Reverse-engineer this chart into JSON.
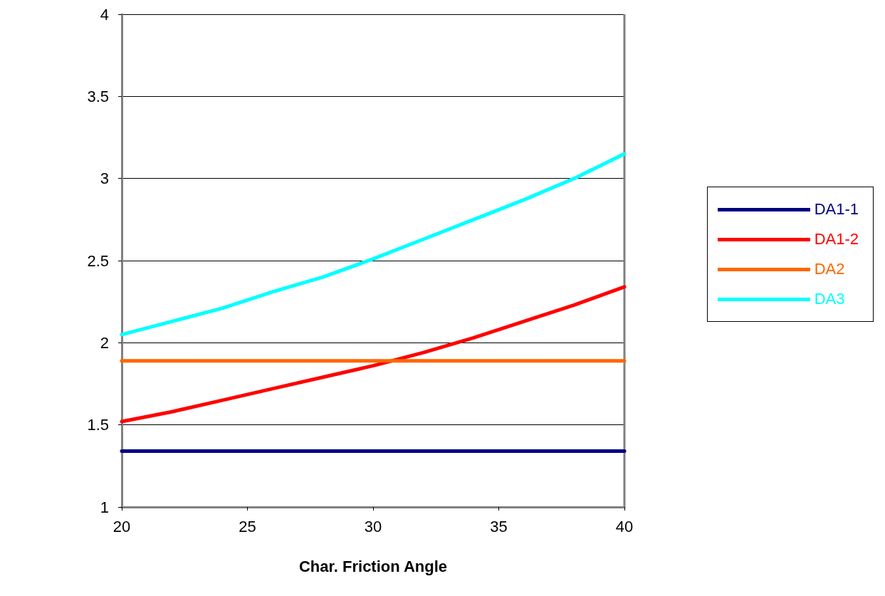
{
  "chart_data": {
    "type": "line",
    "xlabel": "Char. Friction Angle",
    "x": [
      20,
      22,
      24,
      26,
      28,
      30,
      32,
      34,
      36,
      38,
      40
    ],
    "series": [
      {
        "name": "DA1-1",
        "color": "#000080",
        "values": [
          1.34,
          1.34,
          1.34,
          1.34,
          1.34,
          1.34,
          1.34,
          1.34,
          1.34,
          1.34,
          1.34
        ]
      },
      {
        "name": "DA1-2",
        "color": "#ff0000",
        "values": [
          1.52,
          1.58,
          1.65,
          1.72,
          1.79,
          1.86,
          1.94,
          2.03,
          2.13,
          2.23,
          2.34
        ]
      },
      {
        "name": "DA2",
        "color": "#ff6600",
        "values": [
          1.89,
          1.89,
          1.89,
          1.89,
          1.89,
          1.89,
          1.89,
          1.89,
          1.89,
          1.89,
          1.89
        ]
      },
      {
        "name": "DA3",
        "color": "#00ffff",
        "values": [
          2.05,
          2.13,
          2.21,
          2.31,
          2.4,
          2.51,
          2.63,
          2.75,
          2.87,
          3.0,
          3.15
        ]
      }
    ],
    "xlim": [
      20,
      40
    ],
    "xticks": [
      20,
      25,
      30,
      35,
      40
    ],
    "ylim": [
      1,
      4
    ],
    "yticks": [
      1,
      1.5,
      2,
      2.5,
      3,
      3.5,
      4
    ],
    "grid": "y",
    "legend": "right",
    "marker": "none",
    "line_style": "solid"
  }
}
